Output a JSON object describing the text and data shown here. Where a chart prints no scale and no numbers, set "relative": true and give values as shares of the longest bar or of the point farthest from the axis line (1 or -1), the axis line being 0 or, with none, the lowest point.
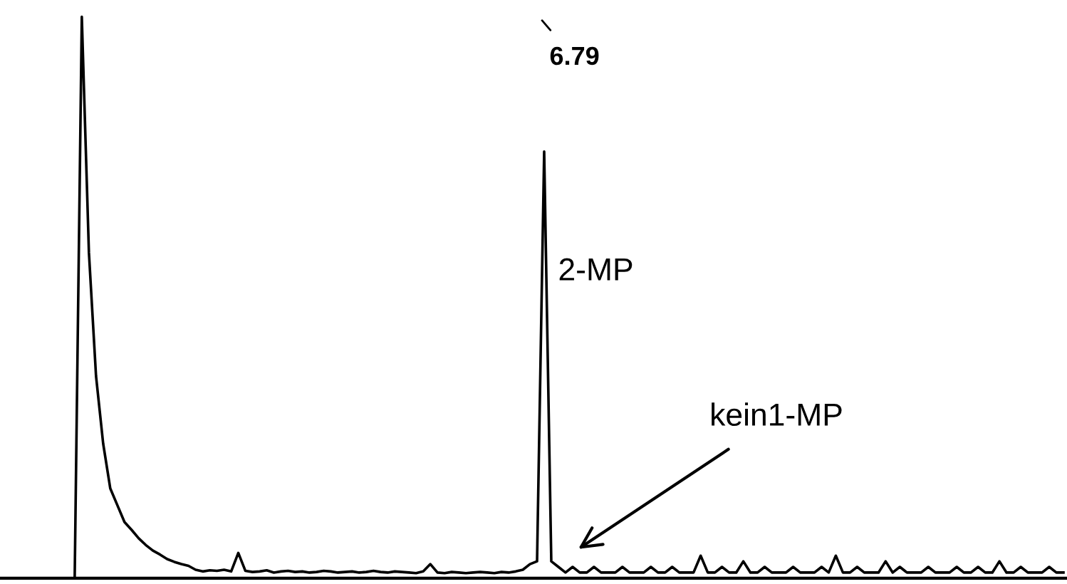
{
  "chart_data": {
    "type": "line",
    "relative": true,
    "color": "#000000",
    "marker": "none",
    "line_style": "solid",
    "annotations": [
      "6.79",
      "2-MP",
      "kein1-MP"
    ],
    "categories": [
      null,
      null,
      null,
      null,
      null,
      null,
      null,
      null,
      null,
      null,
      null,
      null,
      null,
      null,
      null,
      null,
      null,
      null,
      null,
      null,
      null,
      null,
      null,
      null,
      null,
      null,
      null,
      null,
      null,
      null,
      null,
      null,
      null,
      null,
      null,
      null,
      null,
      null,
      null,
      null,
      null,
      null,
      null,
      null,
      null,
      null,
      null,
      null,
      null,
      null,
      null,
      null,
      null,
      null,
      null,
      null,
      null,
      null,
      null,
      null,
      null,
      null,
      null,
      null,
      null,
      null,
      null,
      null,
      null,
      null,
      null,
      null,
      null,
      null,
      null,
      null,
      null,
      null,
      null,
      null,
      null,
      null,
      null,
      null,
      null,
      null,
      null,
      null,
      null,
      null,
      null,
      null,
      null,
      null,
      null,
      null,
      null,
      null,
      null,
      null,
      null,
      null,
      null,
      null,
      null,
      null,
      null,
      null,
      null,
      null,
      null,
      null,
      null,
      null,
      null,
      null,
      null,
      null,
      null,
      null,
      null,
      null,
      null,
      null,
      null,
      null,
      null,
      null,
      null,
      null,
      null,
      null,
      null,
      null,
      null,
      null,
      null,
      null,
      null,
      null,
      null,
      null,
      null,
      null,
      null,
      null,
      null,
      null,
      null,
      null
    ],
    "values": [
      0,
      0,
      0,
      0,
      0,
      0,
      0,
      0,
      0,
      0,
      0,
      1,
      0.58,
      0.36,
      0.24,
      0.16,
      0.13,
      0.1,
      0.086,
      0.071,
      0.059,
      0.049,
      0.042,
      0.034,
      0.029,
      0.025,
      0.022,
      0.015,
      0.012,
      0.014,
      0.013,
      0.015,
      0.012,
      0.045,
      0.013,
      0.011,
      0.012,
      0.014,
      0.01,
      0.012,
      0.013,
      0.011,
      0.012,
      0.01,
      0.011,
      0.013,
      0.012,
      0.01,
      0.011,
      0.012,
      0.01,
      0.011,
      0.013,
      0.011,
      0.01,
      0.012,
      0.011,
      0.01,
      0.009,
      0.012,
      0.025,
      0.01,
      0.009,
      0.011,
      0.01,
      0.009,
      0.01,
      0.011,
      0.01,
      0.009,
      0.011,
      0.01,
      0.012,
      0.015,
      0.025,
      0.03,
      0.76,
      0.03,
      0.02,
      0.01,
      0.02,
      0.01,
      0.01,
      0.02,
      0.01,
      0.01,
      0.01,
      0.02,
      0.01,
      0.01,
      0.01,
      0.02,
      0.01,
      0.01,
      0.02,
      0.01,
      0.01,
      0.01,
      0.04,
      0.01,
      0.01,
      0.02,
      0.01,
      0.01,
      0.03,
      0.01,
      0.01,
      0.02,
      0.01,
      0.01,
      0.01,
      0.02,
      0.01,
      0.01,
      0.01,
      0.02,
      0.01,
      0.04,
      0.01,
      0.01,
      0.02,
      0.01,
      0.01,
      0.01,
      0.03,
      0.01,
      0.02,
      0.01,
      0.01,
      0.01,
      0.02,
      0.01,
      0.01,
      0.01,
      0.02,
      0.01,
      0.01,
      0.02,
      0.01,
      0.01,
      0.03,
      0.01,
      0.01,
      0.02,
      0.01,
      0.01,
      0.01,
      0.02,
      0.01,
      0.01
    ]
  }
}
